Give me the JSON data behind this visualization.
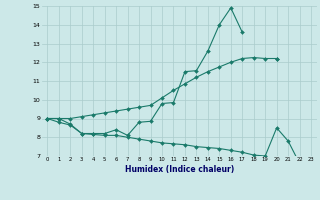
{
  "xlabel": "Humidex (Indice chaleur)",
  "bg_color": "#cce8e8",
  "line_color": "#1a7a6a",
  "grid_color": "#aacccc",
  "x": [
    0,
    1,
    2,
    3,
    4,
    5,
    6,
    7,
    8,
    9,
    10,
    11,
    12,
    13,
    14,
    15,
    16,
    17,
    18,
    19,
    20,
    21,
    22,
    23
  ],
  "line1": [
    9.0,
    9.0,
    8.7,
    8.2,
    8.2,
    8.2,
    8.4,
    8.1,
    8.8,
    8.85,
    9.8,
    9.85,
    11.5,
    11.55,
    12.6,
    14.0,
    14.9,
    13.6,
    null,
    null,
    12.2,
    null,
    null,
    null
  ],
  "line2": [
    9.0,
    9.0,
    9.0,
    9.1,
    9.2,
    9.3,
    9.4,
    9.5,
    9.6,
    9.7,
    10.1,
    10.5,
    10.85,
    11.2,
    11.5,
    11.75,
    12.0,
    12.2,
    12.25,
    12.2,
    12.2,
    null,
    null,
    null
  ],
  "line3": [
    9.0,
    8.8,
    8.65,
    8.2,
    8.15,
    8.1,
    8.1,
    8.0,
    7.9,
    7.8,
    7.7,
    7.65,
    7.6,
    7.5,
    7.45,
    7.4,
    7.3,
    7.2,
    7.05,
    7.0,
    8.5,
    7.8,
    6.6,
    null
  ],
  "ylim": [
    7,
    15
  ],
  "xlim": [
    -0.5,
    23.5
  ],
  "yticks": [
    7,
    8,
    9,
    10,
    11,
    12,
    13,
    14,
    15
  ],
  "xticks": [
    0,
    1,
    2,
    3,
    4,
    5,
    6,
    7,
    8,
    9,
    10,
    11,
    12,
    13,
    14,
    15,
    16,
    17,
    18,
    19,
    20,
    21,
    22,
    23
  ]
}
